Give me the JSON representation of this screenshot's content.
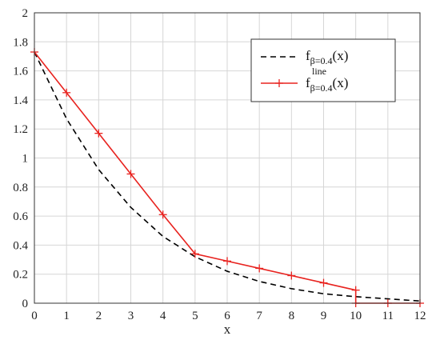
{
  "chart_data": {
    "type": "line",
    "title": "",
    "xlabel": "x",
    "ylabel": "",
    "xlim": [
      0,
      12
    ],
    "ylim": [
      0,
      2
    ],
    "x_ticks": [
      "0",
      "1",
      "2",
      "3",
      "4",
      "5",
      "6",
      "7",
      "8",
      "9",
      "10",
      "11",
      "12"
    ],
    "y_ticks": [
      "0",
      "0.2",
      "0.4",
      "0.6",
      "0.8",
      "1",
      "1.2",
      "1.4",
      "1.6",
      "1.8",
      "2"
    ],
    "grid": true,
    "legend_position": "top-right",
    "series": [
      {
        "name": "f_{β=0.4}(x)",
        "legend_main": "f",
        "legend_sub": "β=0.4",
        "legend_tail": "(x)",
        "style": "dashed",
        "color": "#000000",
        "x": [
          0,
          1,
          2,
          3,
          4,
          5,
          6,
          7,
          8,
          9,
          10,
          11,
          12
        ],
        "y": [
          1.73,
          1.27,
          0.92,
          0.66,
          0.46,
          0.32,
          0.22,
          0.15,
          0.1,
          0.065,
          0.045,
          0.03,
          0.015
        ]
      },
      {
        "name": "f^{line}_{β=0.4}(x)",
        "legend_main": "f",
        "legend_sup": "line",
        "legend_sub": "β=0.4",
        "legend_tail": "(x)",
        "style": "solid-plus",
        "color": "#e8231f",
        "x": [
          0,
          1,
          2,
          3,
          4,
          5,
          6,
          7,
          8,
          9,
          10,
          10,
          11,
          12
        ],
        "y": [
          1.73,
          1.45,
          1.17,
          0.89,
          0.61,
          0.34,
          0.29,
          0.24,
          0.19,
          0.14,
          0.09,
          0,
          0,
          0
        ]
      }
    ]
  }
}
